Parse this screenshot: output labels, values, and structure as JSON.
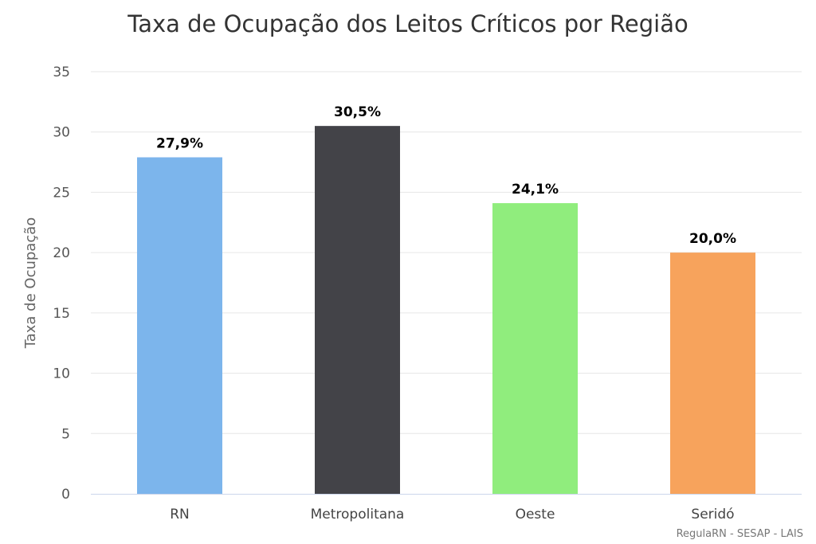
{
  "chart_data": {
    "type": "bar",
    "title": "Taxa de Ocupação dos Leitos Críticos por Região",
    "ylabel": "Taxa de Ocupação",
    "xlabel": "",
    "ylim": [
      0,
      35
    ],
    "yticks": [
      0,
      5,
      10,
      15,
      20,
      25,
      30,
      35
    ],
    "yticks_labels": [
      "0",
      "5",
      "10",
      "15",
      "20",
      "25",
      "30",
      "35"
    ],
    "grid": true,
    "categories": [
      "RN",
      "Metropolitana",
      "Oeste",
      "Seridó"
    ],
    "values": [
      27.9,
      30.5,
      24.1,
      20.0
    ],
    "data_labels": [
      "27,9%",
      "30,5%",
      "24,1%",
      "20,0%"
    ],
    "colors": [
      "#7cb5ec",
      "#434348",
      "#90ed7d",
      "#f7a35c"
    ],
    "credit": "RegulaRN - SESAP - LAIS"
  }
}
